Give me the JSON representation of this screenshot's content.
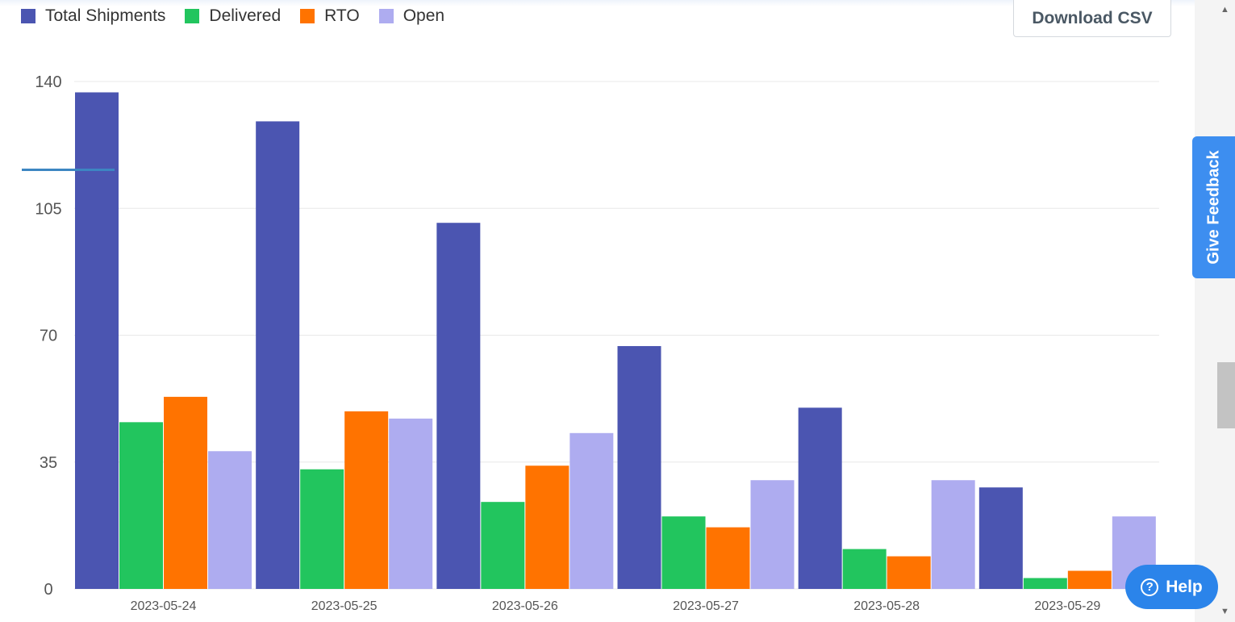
{
  "toolbar": {
    "download_label": "Download CSV"
  },
  "feedback": {
    "label": "Give Feedback"
  },
  "help": {
    "label": "Help",
    "icon": "question-circle-icon"
  },
  "colors": {
    "total": "#4b55b1",
    "delivered": "#22c55e",
    "rto": "#ff7300",
    "open": "#aeacf0",
    "grid": "#e8e8e8",
    "axis_text": "#555555"
  },
  "chart_data": {
    "type": "bar",
    "categories": [
      "2023-05-24",
      "2023-05-25",
      "2023-05-26",
      "2023-05-27",
      "2023-05-28",
      "2023-05-29"
    ],
    "series": [
      {
        "name": "Total Shipments",
        "color": "#4b55b1",
        "values": [
          137,
          129,
          101,
          67,
          50,
          28
        ]
      },
      {
        "name": "Delivered",
        "color": "#22c55e",
        "values": [
          46,
          33,
          24,
          20,
          11,
          3
        ]
      },
      {
        "name": "RTO",
        "color": "#ff7300",
        "values": [
          53,
          49,
          34,
          17,
          9,
          5
        ]
      },
      {
        "name": "Open",
        "color": "#aeacf0",
        "values": [
          38,
          47,
          43,
          30,
          30,
          20
        ]
      }
    ],
    "ylim": [
      0,
      140
    ],
    "yticks": [
      0,
      35,
      70,
      105,
      140
    ],
    "grid": true,
    "legend_position": "top-left",
    "title": "",
    "xlabel": "",
    "ylabel": ""
  }
}
